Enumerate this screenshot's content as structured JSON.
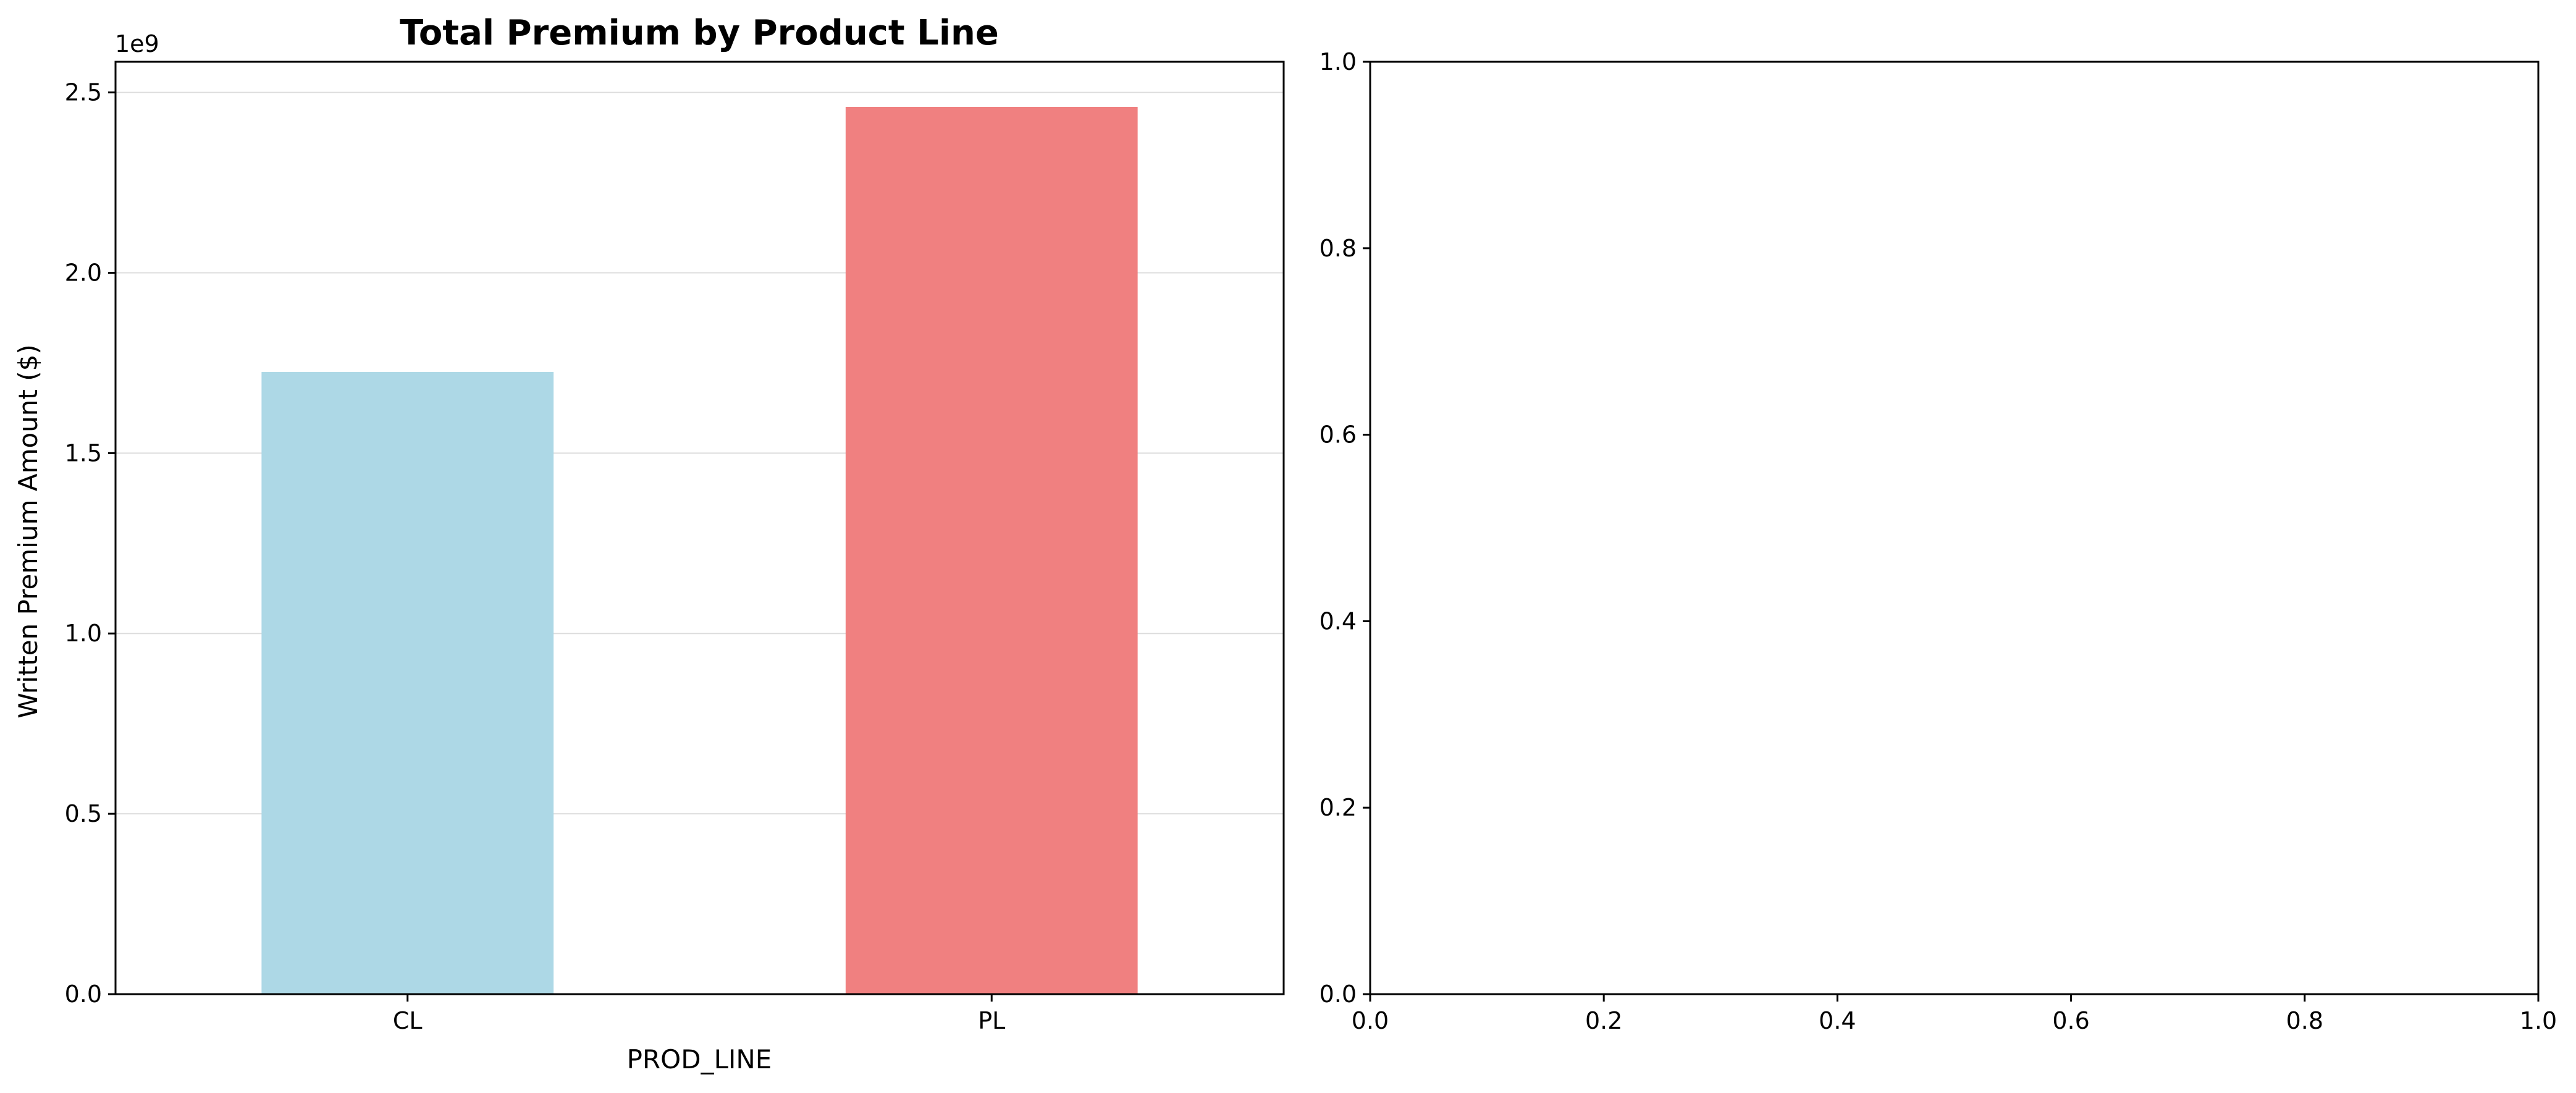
{
  "chart_data": [
    {
      "type": "bar",
      "title": "Total Premium by Product Line",
      "xlabel": "PROD_LINE",
      "ylabel": "Written Premium Amount ($)",
      "y_offset_label": "1e9",
      "categories": [
        "CL",
        "PL"
      ],
      "values": [
        1.725,
        2.46
      ],
      "value_unit": "1e9",
      "colors": [
        "#add8e6",
        "#f08080"
      ],
      "ylim": [
        0,
        2.585
      ],
      "yticks": [
        0,
        0.5,
        1.0,
        1.5,
        2.0,
        2.5
      ],
      "ytick_labels": [
        "0.0",
        "0.5",
        "1.0",
        "1.5",
        "2.0",
        "2.5"
      ],
      "grid": "y",
      "legend": "none"
    },
    {
      "type": "scatter",
      "title": "",
      "xlabel": "",
      "ylabel": "",
      "series": [],
      "xlim": [
        0,
        1
      ],
      "ylim": [
        0,
        1
      ],
      "xtick_labels": [
        "0.0",
        "0.2",
        "0.4",
        "0.6",
        "0.8",
        "1.0"
      ],
      "ytick_labels": [
        "0.0",
        "0.2",
        "0.4",
        "0.6",
        "0.8",
        "1.0"
      ],
      "grid": "none",
      "legend": "none"
    }
  ]
}
